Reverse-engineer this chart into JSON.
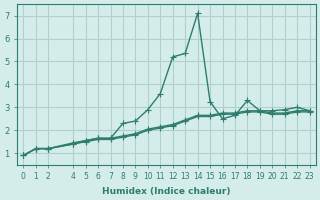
{
  "xlabel": "Humidex (Indice chaleur)",
  "ylabel": "",
  "background_color": "#d4ecea",
  "grid_color": "#b0d0ce",
  "line_color": "#2e7d6e",
  "xlim": [
    -0.5,
    23.5
  ],
  "ylim": [
    0.5,
    7.5
  ],
  "xticks": [
    0,
    1,
    2,
    4,
    5,
    6,
    7,
    8,
    9,
    10,
    11,
    12,
    13,
    14,
    15,
    16,
    17,
    18,
    19,
    20,
    21,
    22,
    23
  ],
  "yticks": [
    1,
    2,
    3,
    4,
    5,
    6,
    7
  ],
  "series": [
    [
      0.9,
      1.2,
      1.2,
      1.4,
      1.5,
      1.6,
      1.6,
      1.7,
      1.8,
      2.0,
      2.1,
      2.2,
      2.4,
      2.6,
      2.6,
      2.7,
      2.7,
      2.8,
      2.8,
      2.7,
      2.7,
      2.8,
      2.8
    ],
    [
      0.9,
      1.2,
      1.2,
      1.4,
      1.55,
      1.65,
      1.65,
      2.3,
      2.4,
      2.9,
      3.6,
      5.2,
      5.35,
      7.1,
      3.25,
      2.5,
      2.65,
      3.3,
      2.85,
      2.85,
      2.9,
      3.0,
      2.85
    ],
    [
      0.9,
      1.2,
      1.2,
      1.45,
      1.55,
      1.65,
      1.65,
      1.75,
      1.85,
      2.05,
      2.15,
      2.25,
      2.45,
      2.65,
      2.65,
      2.75,
      2.75,
      2.85,
      2.85,
      2.75,
      2.75,
      2.85,
      2.85
    ]
  ],
  "x_values": [
    0,
    1,
    2,
    4,
    5,
    6,
    7,
    8,
    9,
    10,
    11,
    12,
    13,
    14,
    15,
    16,
    17,
    18,
    19,
    20,
    21,
    22,
    23
  ]
}
